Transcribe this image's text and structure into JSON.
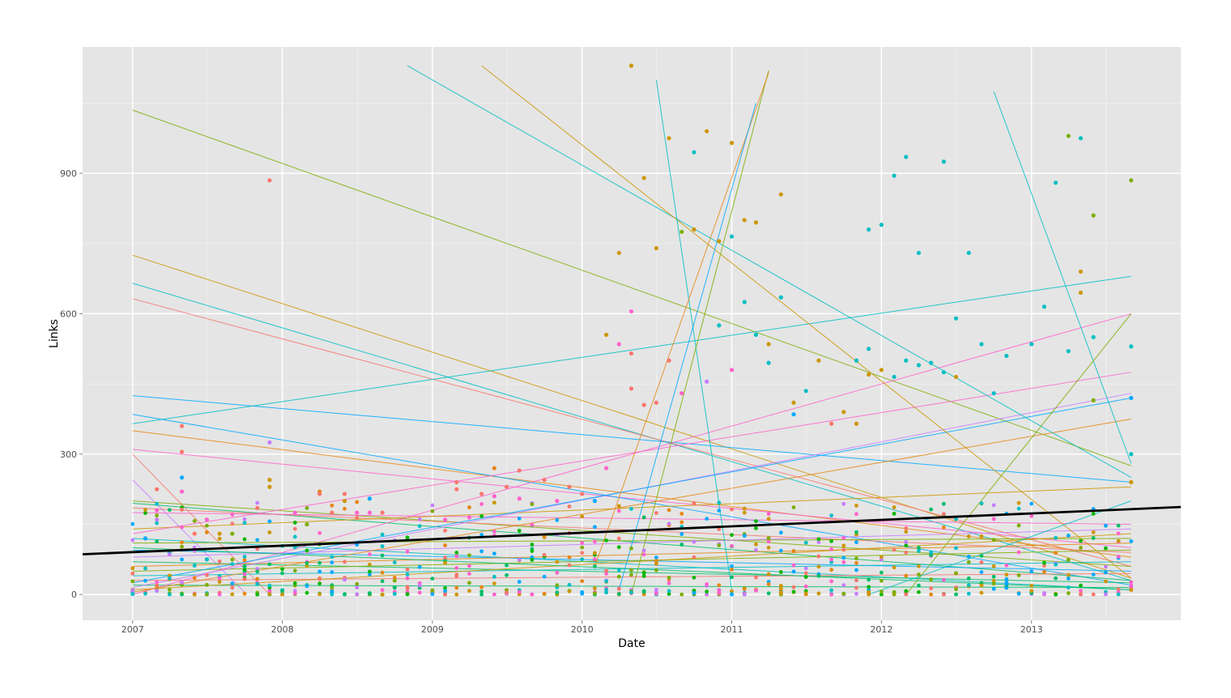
{
  "chart_data": {
    "type": "scatter",
    "title": "",
    "xlabel": "Date",
    "ylabel": "Links",
    "xlim": [
      "2006-09-01",
      "2013-12-31"
    ],
    "ylim": [
      -55,
      1170
    ],
    "x_ticks": [
      "2007",
      "2008",
      "2009",
      "2010",
      "2011",
      "2012",
      "2013"
    ],
    "y_ticks": [
      "0",
      "300",
      "600",
      "900"
    ],
    "grid": true,
    "legend": "none",
    "background": "#e5e5e5",
    "series_colors": [
      "#f8766d",
      "#cd9600",
      "#7cae00",
      "#00be67",
      "#00bfc4",
      "#00a9ff",
      "#c77cff",
      "#ff61cc",
      "#e68613",
      "#0cb702"
    ],
    "overall_trend": {
      "color": "#000000",
      "points": [
        [
          "2006-09-01",
          86
        ],
        [
          "2013-12-31",
          187
        ]
      ]
    },
    "trend_lines": [
      {
        "color": "#7cae00",
        "points": [
          [
            "2007-01-01",
            1035
          ],
          [
            "2013-09-01",
            275
          ]
        ]
      },
      {
        "color": "#cd9600",
        "points": [
          [
            "2007-01-01",
            725
          ],
          [
            "2013-09-01",
            35
          ]
        ]
      },
      {
        "color": "#00bfc4",
        "points": [
          [
            "2007-01-01",
            665
          ],
          [
            "2013-09-01",
            30
          ]
        ]
      },
      {
        "color": "#f8766d",
        "points": [
          [
            "2007-01-01",
            632
          ],
          [
            "2013-09-01",
            60
          ]
        ]
      },
      {
        "color": "#00a9ff",
        "points": [
          [
            "2007-01-01",
            425
          ],
          [
            "2013-09-01",
            240
          ]
        ]
      },
      {
        "color": "#00bfc4",
        "points": [
          [
            "2007-01-01",
            365
          ],
          [
            "2013-09-01",
            680
          ]
        ]
      },
      {
        "color": "#e68613",
        "points": [
          [
            "2007-01-01",
            350
          ],
          [
            "2013-09-01",
            80
          ]
        ]
      },
      {
        "color": "#ff61cc",
        "points": [
          [
            "2007-01-01",
            310
          ],
          [
            "2013-09-01",
            100
          ]
        ]
      },
      {
        "color": "#00a9ff",
        "points": [
          [
            "2007-01-01",
            385
          ],
          [
            "2013-09-01",
            20
          ]
        ]
      },
      {
        "color": "#f8766d",
        "points": [
          [
            "2007-01-01",
            300
          ],
          [
            "2007-12-01",
            0
          ]
        ]
      },
      {
        "color": "#c77cff",
        "points": [
          [
            "2007-01-01",
            245
          ],
          [
            "2007-10-01",
            5
          ]
        ]
      },
      {
        "color": "#7cae00",
        "points": [
          [
            "2007-01-01",
            200
          ],
          [
            "2013-09-01",
            60
          ]
        ]
      },
      {
        "color": "#00be67",
        "points": [
          [
            "2007-01-01",
            195
          ],
          [
            "2013-09-01",
            30
          ]
        ]
      },
      {
        "color": "#f8766d",
        "points": [
          [
            "2007-01-01",
            185
          ],
          [
            "2013-09-01",
            90
          ]
        ]
      },
      {
        "color": "#ff61cc",
        "points": [
          [
            "2007-01-01",
            175
          ],
          [
            "2013-09-01",
            150
          ]
        ]
      },
      {
        "color": "#cd9600",
        "points": [
          [
            "2007-01-01",
            140
          ],
          [
            "2013-09-01",
            230
          ]
        ]
      },
      {
        "color": "#00bfc4",
        "points": [
          [
            "2007-01-01",
            120
          ],
          [
            "2013-09-01",
            10
          ]
        ]
      },
      {
        "color": "#7cae00",
        "points": [
          [
            "2007-01-01",
            110
          ],
          [
            "2013-09-01",
            120
          ]
        ]
      },
      {
        "color": "#00a9ff",
        "points": [
          [
            "2007-01-01",
            95
          ],
          [
            "2013-09-01",
            50
          ]
        ]
      },
      {
        "color": "#c77cff",
        "points": [
          [
            "2007-01-01",
            80
          ],
          [
            "2013-09-01",
            140
          ]
        ]
      },
      {
        "color": "#00be67",
        "points": [
          [
            "2007-01-01",
            70
          ],
          [
            "2013-09-01",
            25
          ]
        ]
      },
      {
        "color": "#e68613",
        "points": [
          [
            "2007-01-01",
            60
          ],
          [
            "2013-09-01",
            110
          ]
        ]
      },
      {
        "color": "#7cae00",
        "points": [
          [
            "2007-01-01",
            50
          ],
          [
            "2013-09-01",
            95
          ]
        ]
      },
      {
        "color": "#00bfc4",
        "points": [
          [
            "2007-01-01",
            40
          ],
          [
            "2013-09-01",
            70
          ]
        ]
      },
      {
        "color": "#f8766d",
        "points": [
          [
            "2007-01-01",
            30
          ],
          [
            "2013-09-01",
            45
          ]
        ]
      },
      {
        "color": "#00be67",
        "points": [
          [
            "2007-01-01",
            20
          ],
          [
            "2013-09-01",
            15
          ]
        ]
      },
      {
        "color": "#cd9600",
        "points": [
          [
            "2007-01-01",
            10
          ],
          [
            "2013-09-01",
            130
          ]
        ]
      },
      {
        "color": "#ff61cc",
        "points": [
          [
            "2007-01-01",
            0
          ],
          [
            "2013-09-01",
            600
          ]
        ]
      },
      {
        "color": "#ff61cc",
        "points": [
          [
            "2007-01-01",
            130
          ],
          [
            "2013-09-01",
            475
          ]
        ]
      },
      {
        "color": "#c77cff",
        "points": [
          [
            "2007-01-01",
            15
          ],
          [
            "2013-09-01",
            430
          ]
        ]
      },
      {
        "color": "#00a9ff",
        "points": [
          [
            "2007-01-01",
            25
          ],
          [
            "2013-09-01",
            420
          ]
        ]
      },
      {
        "color": "#e68613",
        "points": [
          [
            "2007-01-01",
            5
          ],
          [
            "2013-09-01",
            375
          ]
        ]
      },
      {
        "color": "#00be67",
        "points": [
          [
            "2007-01-01",
            100
          ],
          [
            "2013-09-01",
            10
          ]
        ]
      },
      {
        "color": "#00bfc4",
        "points": [
          [
            "2008-11-01",
            1130
          ],
          [
            "2013-09-01",
            250
          ]
        ]
      },
      {
        "color": "#cd9600",
        "points": [
          [
            "2009-05-01",
            1130
          ],
          [
            "2013-09-01",
            35
          ]
        ]
      },
      {
        "color": "#00bfc4",
        "points": [
          [
            "2010-07-01",
            1100
          ],
          [
            "2011-01-01",
            10
          ]
        ]
      },
      {
        "color": "#7cae00",
        "points": [
          [
            "2010-05-01",
            0
          ],
          [
            "2011-04-01",
            1120
          ]
        ]
      },
      {
        "color": "#e68613",
        "points": [
          [
            "2010-02-01",
            60
          ],
          [
            "2011-04-01",
            1115
          ]
        ]
      },
      {
        "color": "#00a9ff",
        "points": [
          [
            "2010-04-01",
            10
          ],
          [
            "2011-03-01",
            1050
          ]
        ]
      },
      {
        "color": "#00bfc4",
        "points": [
          [
            "2012-10-01",
            1075
          ],
          [
            "2013-09-01",
            280
          ]
        ]
      },
      {
        "color": "#7cae00",
        "points": [
          [
            "2012-03-01",
            0
          ],
          [
            "2013-09-01",
            600
          ]
        ]
      },
      {
        "color": "#00bfc4",
        "points": [
          [
            "2011-12-01",
            0
          ],
          [
            "2013-09-01",
            200
          ]
        ]
      }
    ],
    "points": [
      [
        "2007-01-01",
        5,
        "#00bfc4"
      ],
      [
        "2007-01-01",
        10,
        "#f8766d"
      ],
      [
        "2007-02-01",
        120,
        "#00a9ff"
      ],
      [
        "2007-03-01",
        225,
        "#f8766d"
      ],
      [
        "2007-03-01",
        180,
        "#ff61cc"
      ],
      [
        "2007-03-01",
        160,
        "#c77cff"
      ],
      [
        "2007-04-01",
        90,
        "#00bfc4"
      ],
      [
        "2007-04-01",
        40,
        "#cd9600"
      ],
      [
        "2007-05-01",
        360,
        "#f8766d"
      ],
      [
        "2007-05-01",
        305,
        "#f8766d"
      ],
      [
        "2007-05-01",
        250,
        "#00a9ff"
      ],
      [
        "2007-05-01",
        220,
        "#ff61cc"
      ],
      [
        "2007-06-01",
        130,
        "#f8766d"
      ],
      [
        "2007-06-01",
        100,
        "#c77cff"
      ],
      [
        "2007-07-01",
        160,
        "#ff61cc"
      ],
      [
        "2007-07-01",
        75,
        "#00bfc4"
      ],
      [
        "2007-08-01",
        130,
        "#cd9600"
      ],
      [
        "2007-09-01",
        130,
        "#7cae00"
      ],
      [
        "2007-10-01",
        60,
        "#00be67"
      ],
      [
        "2007-11-01",
        185,
        "#f8766d"
      ],
      [
        "2007-12-01",
        885,
        "#f8766d"
      ],
      [
        "2007-12-01",
        325,
        "#c77cff"
      ],
      [
        "2007-12-01",
        245,
        "#cd9600"
      ],
      [
        "2007-12-01",
        230,
        "#cd9600"
      ],
      [
        "2008-02-01",
        175,
        "#ff61cc"
      ],
      [
        "2008-03-01",
        150,
        "#7cae00"
      ],
      [
        "2008-04-01",
        220,
        "#e68613"
      ],
      [
        "2008-04-01",
        215,
        "#f8766d"
      ],
      [
        "2008-05-01",
        175,
        "#f8766d"
      ],
      [
        "2008-06-01",
        215,
        "#f8766d"
      ],
      [
        "2008-06-01",
        200,
        "#cd9600"
      ],
      [
        "2008-07-01",
        175,
        "#ff61cc"
      ],
      [
        "2008-08-01",
        175,
        "#ff61cc"
      ],
      [
        "2008-08-01",
        205,
        "#00a9ff"
      ],
      [
        "2008-09-01",
        175,
        "#f8766d"
      ],
      [
        "2008-09-01",
        0,
        "#cd9600"
      ],
      [
        "2008-10-01",
        15,
        "#00be67"
      ],
      [
        "2008-11-01",
        5,
        "#ff61cc"
      ],
      [
        "2009-01-01",
        5,
        "#cd9600"
      ],
      [
        "2009-02-01",
        160,
        "#ff61cc"
      ],
      [
        "2009-03-01",
        240,
        "#f8766d"
      ],
      [
        "2009-03-01",
        225,
        "#f8766d"
      ],
      [
        "2009-04-01",
        165,
        "#ff61cc"
      ],
      [
        "2009-05-01",
        215,
        "#f8766d"
      ],
      [
        "2009-06-01",
        270,
        "#e68613"
      ],
      [
        "2009-06-01",
        210,
        "#ff61cc"
      ],
      [
        "2009-07-01",
        230,
        "#f8766d"
      ],
      [
        "2009-08-01",
        265,
        "#f8766d"
      ],
      [
        "2009-08-01",
        205,
        "#ff61cc"
      ],
      [
        "2009-09-01",
        195,
        "#c77cff"
      ],
      [
        "2009-10-01",
        245,
        "#f8766d"
      ],
      [
        "2009-11-01",
        200,
        "#ff61cc"
      ],
      [
        "2009-12-01",
        230,
        "#f8766d"
      ],
      [
        "2010-01-01",
        215,
        "#f8766d"
      ],
      [
        "2010-02-01",
        200,
        "#00a9ff"
      ],
      [
        "2010-03-01",
        555,
        "#cd9600"
      ],
      [
        "2010-03-01",
        270,
        "#ff61cc"
      ],
      [
        "2010-04-01",
        730,
        "#cd9600"
      ],
      [
        "2010-04-01",
        535,
        "#ff61cc"
      ],
      [
        "2010-05-01",
        1130,
        "#cd9600"
      ],
      [
        "2010-05-01",
        605,
        "#ff61cc"
      ],
      [
        "2010-05-01",
        515,
        "#f8766d"
      ],
      [
        "2010-05-01",
        440,
        "#f8766d"
      ],
      [
        "2010-06-01",
        890,
        "#cd9600"
      ],
      [
        "2010-06-01",
        405,
        "#f8766d"
      ],
      [
        "2010-07-01",
        740,
        "#cd9600"
      ],
      [
        "2010-07-01",
        410,
        "#f8766d"
      ],
      [
        "2010-08-01",
        975,
        "#cd9600"
      ],
      [
        "2010-08-01",
        500,
        "#f8766d"
      ],
      [
        "2010-09-01",
        775,
        "#7cae00"
      ],
      [
        "2010-09-01",
        430,
        "#ff61cc"
      ],
      [
        "2010-10-01",
        945,
        "#00bfc4"
      ],
      [
        "2010-10-01",
        780,
        "#cd9600"
      ],
      [
        "2010-11-01",
        990,
        "#cd9600"
      ],
      [
        "2010-11-01",
        455,
        "#c77cff"
      ],
      [
        "2010-12-01",
        755,
        "#cd9600"
      ],
      [
        "2010-12-01",
        575,
        "#00bfc4"
      ],
      [
        "2011-01-01",
        965,
        "#cd9600"
      ],
      [
        "2011-01-01",
        765,
        "#00bfc4"
      ],
      [
        "2011-01-01",
        480,
        "#ff61cc"
      ],
      [
        "2011-02-01",
        800,
        "#cd9600"
      ],
      [
        "2011-02-01",
        625,
        "#00bfc4"
      ],
      [
        "2011-03-01",
        795,
        "#cd9600"
      ],
      [
        "2011-03-01",
        555,
        "#00bfc4"
      ],
      [
        "2011-04-01",
        535,
        "#cd9600"
      ],
      [
        "2011-04-01",
        495,
        "#00bfc4"
      ],
      [
        "2011-05-01",
        855,
        "#cd9600"
      ],
      [
        "2011-05-01",
        635,
        "#00bfc4"
      ],
      [
        "2011-06-01",
        410,
        "#cd9600"
      ],
      [
        "2011-06-01",
        385,
        "#00a9ff"
      ],
      [
        "2011-07-01",
        435,
        "#00bfc4"
      ],
      [
        "2011-08-01",
        500,
        "#cd9600"
      ],
      [
        "2011-09-01",
        365,
        "#f8766d"
      ],
      [
        "2011-10-01",
        390,
        "#cd9600"
      ],
      [
        "2011-11-01",
        500,
        "#00bfc4"
      ],
      [
        "2011-11-01",
        365,
        "#cd9600"
      ],
      [
        "2011-12-01",
        780,
        "#00bfc4"
      ],
      [
        "2011-12-01",
        525,
        "#00bfc4"
      ],
      [
        "2011-12-01",
        470,
        "#cd9600"
      ],
      [
        "2012-01-01",
        790,
        "#00bfc4"
      ],
      [
        "2012-01-01",
        480,
        "#cd9600"
      ],
      [
        "2012-02-01",
        895,
        "#00bfc4"
      ],
      [
        "2012-02-01",
        465,
        "#00bfc4"
      ],
      [
        "2012-03-01",
        935,
        "#00bfc4"
      ],
      [
        "2012-03-01",
        500,
        "#00bfc4"
      ],
      [
        "2012-04-01",
        730,
        "#00bfc4"
      ],
      [
        "2012-04-01",
        490,
        "#00bfc4"
      ],
      [
        "2012-05-01",
        495,
        "#00bfc4"
      ],
      [
        "2012-06-01",
        925,
        "#00bfc4"
      ],
      [
        "2012-06-01",
        475,
        "#00bfc4"
      ],
      [
        "2012-07-01",
        590,
        "#00bfc4"
      ],
      [
        "2012-07-01",
        465,
        "#cd9600"
      ],
      [
        "2012-08-01",
        730,
        "#00bfc4"
      ],
      [
        "2012-09-01",
        535,
        "#00bfc4"
      ],
      [
        "2012-10-01",
        430,
        "#00bfc4"
      ],
      [
        "2012-11-01",
        510,
        "#00bfc4"
      ],
      [
        "2013-01-01",
        535,
        "#00bfc4"
      ],
      [
        "2013-02-01",
        615,
        "#00bfc4"
      ],
      [
        "2013-03-01",
        880,
        "#00bfc4"
      ],
      [
        "2013-04-01",
        980,
        "#7cae00"
      ],
      [
        "2013-04-01",
        520,
        "#00bfc4"
      ],
      [
        "2013-05-01",
        975,
        "#00bfc4"
      ],
      [
        "2013-05-01",
        690,
        "#cd9600"
      ],
      [
        "2013-05-01",
        645,
        "#cd9600"
      ],
      [
        "2013-06-01",
        810,
        "#7cae00"
      ],
      [
        "2013-06-01",
        550,
        "#00bfc4"
      ],
      [
        "2013-06-01",
        415,
        "#7cae00"
      ],
      [
        "2013-09-01",
        885,
        "#7cae00"
      ],
      [
        "2013-09-01",
        530,
        "#00bfc4"
      ],
      [
        "2013-09-01",
        420,
        "#00a9ff"
      ],
      [
        "2013-09-01",
        300,
        "#00bfc4"
      ],
      [
        "2013-09-01",
        240,
        "#cd9600"
      ]
    ],
    "cluster_note": ""
  }
}
